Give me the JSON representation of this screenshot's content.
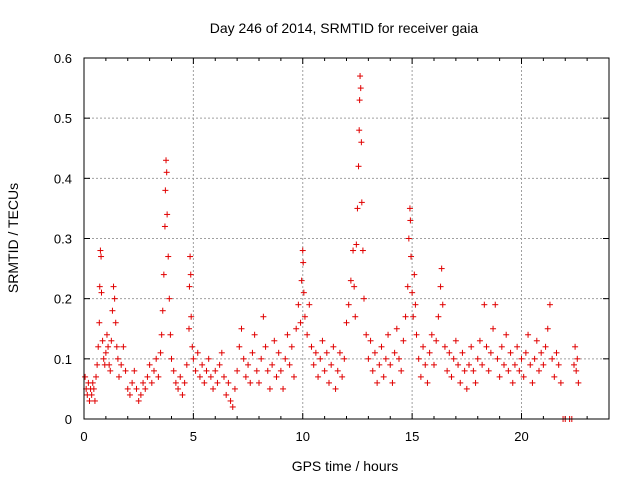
{
  "chart_data": {
    "type": "scatter",
    "title": "Day 246 of 2014, SRMTID for receiver gaia",
    "xlabel": "GPS time / hours",
    "ylabel": "SRMTID / TECUs",
    "xlim": [
      0,
      24
    ],
    "ylim": [
      0,
      0.6
    ],
    "x_ticks": [
      0,
      5,
      10,
      15,
      20
    ],
    "x_tick_labels": [
      "0",
      "5",
      "10",
      "15",
      "20"
    ],
    "y_ticks": [
      0,
      0.1,
      0.2,
      0.3,
      0.4,
      0.5,
      0.6
    ],
    "y_tick_labels": [
      "0",
      "0.1",
      "0.2",
      "0.3",
      "0.4",
      "0.5",
      "0.6"
    ],
    "grid": true,
    "marker": "+",
    "color": "#e00000",
    "series": [
      {
        "name": "SRMTID",
        "points": [
          [
            0.05,
            0.07
          ],
          [
            0.1,
            0.05
          ],
          [
            0.15,
            0.04
          ],
          [
            0.2,
            0.06
          ],
          [
            0.25,
            0.03
          ],
          [
            0.3,
            0.05
          ],
          [
            0.35,
            0.04
          ],
          [
            0.4,
            0.06
          ],
          [
            0.45,
            0.05
          ],
          [
            0.5,
            0.03
          ],
          [
            0.55,
            0.07
          ],
          [
            0.6,
            0.09
          ],
          [
            0.65,
            0.12
          ],
          [
            0.7,
            0.16
          ],
          [
            0.72,
            0.22
          ],
          [
            0.75,
            0.28
          ],
          [
            0.78,
            0.27
          ],
          [
            0.8,
            0.21
          ],
          [
            0.85,
            0.13
          ],
          [
            0.9,
            0.1
          ],
          [
            0.95,
            0.09
          ],
          [
            1.0,
            0.11
          ],
          [
            1.05,
            0.14
          ],
          [
            1.1,
            0.12
          ],
          [
            1.15,
            0.09
          ],
          [
            1.2,
            0.08
          ],
          [
            1.25,
            0.13
          ],
          [
            1.3,
            0.18
          ],
          [
            1.35,
            0.22
          ],
          [
            1.4,
            0.2
          ],
          [
            1.45,
            0.16
          ],
          [
            1.5,
            0.12
          ],
          [
            1.55,
            0.1
          ],
          [
            1.6,
            0.07
          ],
          [
            1.7,
            0.09
          ],
          [
            1.8,
            0.12
          ],
          [
            1.9,
            0.08
          ],
          [
            2.0,
            0.05
          ],
          [
            2.1,
            0.04
          ],
          [
            2.2,
            0.06
          ],
          [
            2.3,
            0.08
          ],
          [
            2.4,
            0.05
          ],
          [
            2.5,
            0.03
          ],
          [
            2.6,
            0.04
          ],
          [
            2.7,
            0.06
          ],
          [
            2.8,
            0.05
          ],
          [
            2.9,
            0.07
          ],
          [
            3.0,
            0.09
          ],
          [
            3.1,
            0.06
          ],
          [
            3.2,
            0.08
          ],
          [
            3.3,
            0.1
          ],
          [
            3.4,
            0.07
          ],
          [
            3.5,
            0.11
          ],
          [
            3.55,
            0.14
          ],
          [
            3.6,
            0.18
          ],
          [
            3.65,
            0.24
          ],
          [
            3.7,
            0.32
          ],
          [
            3.72,
            0.38
          ],
          [
            3.75,
            0.43
          ],
          [
            3.78,
            0.41
          ],
          [
            3.8,
            0.34
          ],
          [
            3.85,
            0.27
          ],
          [
            3.9,
            0.2
          ],
          [
            3.95,
            0.14
          ],
          [
            4.0,
            0.1
          ],
          [
            4.1,
            0.08
          ],
          [
            4.2,
            0.06
          ],
          [
            4.3,
            0.05
          ],
          [
            4.4,
            0.07
          ],
          [
            4.5,
            0.04
          ],
          [
            4.6,
            0.06
          ],
          [
            4.7,
            0.09
          ],
          [
            4.8,
            0.15
          ],
          [
            4.82,
            0.22
          ],
          [
            4.85,
            0.27
          ],
          [
            4.88,
            0.24
          ],
          [
            4.9,
            0.17
          ],
          [
            4.95,
            0.12
          ],
          [
            5.0,
            0.1
          ],
          [
            5.1,
            0.08
          ],
          [
            5.2,
            0.11
          ],
          [
            5.3,
            0.07
          ],
          [
            5.4,
            0.09
          ],
          [
            5.5,
            0.06
          ],
          [
            5.6,
            0.08
          ],
          [
            5.7,
            0.1
          ],
          [
            5.8,
            0.07
          ],
          [
            5.9,
            0.05
          ],
          [
            6.0,
            0.08
          ],
          [
            6.1,
            0.06
          ],
          [
            6.2,
            0.09
          ],
          [
            6.3,
            0.11
          ],
          [
            6.4,
            0.07
          ],
          [
            6.5,
            0.04
          ],
          [
            6.6,
            0.06
          ],
          [
            6.7,
            0.03
          ],
          [
            6.8,
            0.02
          ],
          [
            6.9,
            0.05
          ],
          [
            7.0,
            0.08
          ],
          [
            7.1,
            0.12
          ],
          [
            7.2,
            0.15
          ],
          [
            7.3,
            0.1
          ],
          [
            7.4,
            0.07
          ],
          [
            7.5,
            0.09
          ],
          [
            7.6,
            0.06
          ],
          [
            7.7,
            0.11
          ],
          [
            7.8,
            0.14
          ],
          [
            7.9,
            0.08
          ],
          [
            8.0,
            0.06
          ],
          [
            8.1,
            0.1
          ],
          [
            8.2,
            0.17
          ],
          [
            8.3,
            0.12
          ],
          [
            8.4,
            0.08
          ],
          [
            8.5,
            0.05
          ],
          [
            8.6,
            0.09
          ],
          [
            8.7,
            0.13
          ],
          [
            8.8,
            0.07
          ],
          [
            8.9,
            0.11
          ],
          [
            9.0,
            0.08
          ],
          [
            9.1,
            0.05
          ],
          [
            9.2,
            0.1
          ],
          [
            9.3,
            0.14
          ],
          [
            9.4,
            0.09
          ],
          [
            9.5,
            0.12
          ],
          [
            9.6,
            0.07
          ],
          [
            9.7,
            0.15
          ],
          [
            9.8,
            0.19
          ],
          [
            9.9,
            0.16
          ],
          [
            9.95,
            0.23
          ],
          [
            10.0,
            0.28
          ],
          [
            10.02,
            0.26
          ],
          [
            10.05,
            0.21
          ],
          [
            10.1,
            0.17
          ],
          [
            10.2,
            0.14
          ],
          [
            10.3,
            0.19
          ],
          [
            10.4,
            0.12
          ],
          [
            10.5,
            0.09
          ],
          [
            10.6,
            0.11
          ],
          [
            10.7,
            0.07
          ],
          [
            10.8,
            0.1
          ],
          [
            10.9,
            0.13
          ],
          [
            11.0,
            0.08
          ],
          [
            11.1,
            0.11
          ],
          [
            11.2,
            0.06
          ],
          [
            11.3,
            0.09
          ],
          [
            11.4,
            0.12
          ],
          [
            11.5,
            0.05
          ],
          [
            11.6,
            0.08
          ],
          [
            11.7,
            0.11
          ],
          [
            11.8,
            0.07
          ],
          [
            11.9,
            0.1
          ],
          [
            12.0,
            0.16
          ],
          [
            12.1,
            0.19
          ],
          [
            12.2,
            0.23
          ],
          [
            12.3,
            0.28
          ],
          [
            12.35,
            0.22
          ],
          [
            12.4,
            0.17
          ],
          [
            12.45,
            0.29
          ],
          [
            12.5,
            0.35
          ],
          [
            12.55,
            0.42
          ],
          [
            12.58,
            0.48
          ],
          [
            12.6,
            0.53
          ],
          [
            12.62,
            0.57
          ],
          [
            12.65,
            0.55
          ],
          [
            12.68,
            0.46
          ],
          [
            12.7,
            0.36
          ],
          [
            12.75,
            0.28
          ],
          [
            12.8,
            0.2
          ],
          [
            12.9,
            0.14
          ],
          [
            13.0,
            0.1
          ],
          [
            13.1,
            0.13
          ],
          [
            13.2,
            0.08
          ],
          [
            13.3,
            0.11
          ],
          [
            13.4,
            0.06
          ],
          [
            13.5,
            0.09
          ],
          [
            13.6,
            0.12
          ],
          [
            13.7,
            0.07
          ],
          [
            13.8,
            0.1
          ],
          [
            13.9,
            0.14
          ],
          [
            14.0,
            0.09
          ],
          [
            14.1,
            0.06
          ],
          [
            14.2,
            0.11
          ],
          [
            14.3,
            0.15
          ],
          [
            14.4,
            0.1
          ],
          [
            14.5,
            0.08
          ],
          [
            14.6,
            0.13
          ],
          [
            14.7,
            0.17
          ],
          [
            14.8,
            0.22
          ],
          [
            14.85,
            0.3
          ],
          [
            14.9,
            0.35
          ],
          [
            14.92,
            0.33
          ],
          [
            14.95,
            0.27
          ],
          [
            15.0,
            0.21
          ],
          [
            15.05,
            0.17
          ],
          [
            15.1,
            0.24
          ],
          [
            15.15,
            0.19
          ],
          [
            15.2,
            0.14
          ],
          [
            15.3,
            0.1
          ],
          [
            15.4,
            0.07
          ],
          [
            15.5,
            0.12
          ],
          [
            15.6,
            0.09
          ],
          [
            15.7,
            0.06
          ],
          [
            15.8,
            0.11
          ],
          [
            15.9,
            0.14
          ],
          [
            16.0,
            0.09
          ],
          [
            16.1,
            0.13
          ],
          [
            16.2,
            0.17
          ],
          [
            16.3,
            0.22
          ],
          [
            16.35,
            0.25
          ],
          [
            16.4,
            0.19
          ],
          [
            16.5,
            0.12
          ],
          [
            16.6,
            0.08
          ],
          [
            16.7,
            0.11
          ],
          [
            16.8,
            0.07
          ],
          [
            16.9,
            0.1
          ],
          [
            17.0,
            0.13
          ],
          [
            17.1,
            0.09
          ],
          [
            17.2,
            0.06
          ],
          [
            17.3,
            0.11
          ],
          [
            17.4,
            0.08
          ],
          [
            17.5,
            0.05
          ],
          [
            17.6,
            0.09
          ],
          [
            17.7,
            0.12
          ],
          [
            17.8,
            0.08
          ],
          [
            17.9,
            0.06
          ],
          [
            18.0,
            0.1
          ],
          [
            18.1,
            0.13
          ],
          [
            18.2,
            0.09
          ],
          [
            18.3,
            0.19
          ],
          [
            18.4,
            0.12
          ],
          [
            18.5,
            0.08
          ],
          [
            18.6,
            0.11
          ],
          [
            18.7,
            0.15
          ],
          [
            18.8,
            0.19
          ],
          [
            18.9,
            0.1
          ],
          [
            19.0,
            0.07
          ],
          [
            19.1,
            0.12
          ],
          [
            19.2,
            0.09
          ],
          [
            19.3,
            0.14
          ],
          [
            19.4,
            0.08
          ],
          [
            19.5,
            0.11
          ],
          [
            19.6,
            0.06
          ],
          [
            19.7,
            0.09
          ],
          [
            19.8,
            0.12
          ],
          [
            19.9,
            0.08
          ],
          [
            20.0,
            0.1
          ],
          [
            20.1,
            0.07
          ],
          [
            20.2,
            0.11
          ],
          [
            20.3,
            0.14
          ],
          [
            20.4,
            0.09
          ],
          [
            20.5,
            0.06
          ],
          [
            20.6,
            0.1
          ],
          [
            20.7,
            0.13
          ],
          [
            20.8,
            0.08
          ],
          [
            20.9,
            0.11
          ],
          [
            21.0,
            0.09
          ],
          [
            21.1,
            0.12
          ],
          [
            21.2,
            0.15
          ],
          [
            21.3,
            0.19
          ],
          [
            21.4,
            0.1
          ],
          [
            21.5,
            0.07
          ],
          [
            21.6,
            0.11
          ],
          [
            21.7,
            0.09
          ],
          [
            21.8,
            0.06
          ],
          [
            21.9,
            0.0
          ],
          [
            22.0,
            0.0
          ],
          [
            22.2,
            0.0
          ],
          [
            22.3,
            0.0
          ],
          [
            22.4,
            0.09
          ],
          [
            22.45,
            0.12
          ],
          [
            22.5,
            0.08
          ],
          [
            22.55,
            0.1
          ],
          [
            22.6,
            0.06
          ]
        ]
      }
    ]
  }
}
